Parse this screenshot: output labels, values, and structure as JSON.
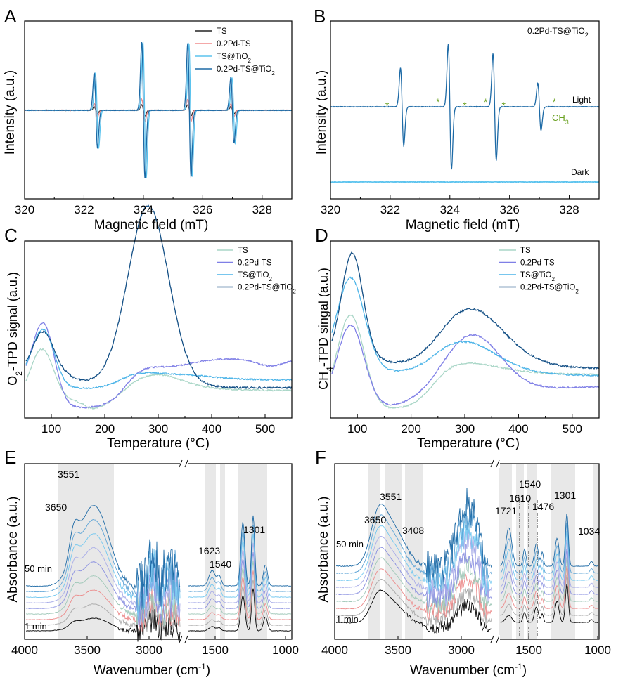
{
  "chart_data": [
    {
      "panel": "A",
      "type": "line",
      "xlabel": "Magnetic field (mT)",
      "ylabel": "Intensity (a.u.)",
      "xlim": [
        320,
        329
      ],
      "xticks": [
        "320",
        "322",
        "324",
        "326",
        "328"
      ],
      "peak_centers": [
        322.4,
        324.0,
        325.55,
        327.0
      ],
      "series": [
        {
          "name": "TS",
          "color": "#222222",
          "amplitudes": [
            0.05,
            0.08,
            0.08,
            0.05
          ]
        },
        {
          "name": "0.2Pd-TS",
          "color": "#f08c8c",
          "amplitudes": [
            0.1,
            0.16,
            0.16,
            0.09
          ]
        },
        {
          "name": "TS@TiO₂",
          "color": "#5bc3ee",
          "amplitudes": [
            0.55,
            1.0,
            0.98,
            0.48
          ]
        },
        {
          "name": "0.2Pd-TS@TiO₂",
          "color": "#1d6aa6",
          "amplitudes": [
            0.55,
            1.0,
            0.98,
            0.48
          ]
        }
      ]
    },
    {
      "panel": "B",
      "type": "line",
      "title": "0.2Pd-TS@TiO₂",
      "xlabel": "Magnetic field (mT)",
      "ylabel": "Intensity (a.u.)",
      "xlim": [
        320,
        329
      ],
      "xticks": [
        "320",
        "322",
        "324",
        "326",
        "328"
      ],
      "annotations": [
        "Light",
        "Dark",
        "CH₃"
      ],
      "star_positions": [
        321.9,
        323.6,
        324.5,
        325.2,
        325.8,
        327.5
      ],
      "series": [
        {
          "name": "Light",
          "color": "#1d6aa6",
          "peak_centers": [
            322.4,
            324.0,
            325.5,
            327.0
          ],
          "amplitudes": [
            0.62,
            1.0,
            0.85,
            0.38
          ]
        },
        {
          "name": "Dark",
          "color": "#5bc3ee",
          "flat": true
        }
      ]
    },
    {
      "panel": "C",
      "type": "line",
      "xlabel": "Temperature (°C)",
      "ylabel": "O₂-TPD signal (a.u.)",
      "xlim": [
        50,
        550
      ],
      "xticks": [
        "100",
        "200",
        "300",
        "400",
        "500"
      ],
      "series": [
        {
          "name": "TS",
          "color": "#a9d6c7"
        },
        {
          "name": "0.2Pd-TS",
          "color": "#7f7fe6"
        },
        {
          "name": "TS@TiO₂",
          "color": "#4cb4e8"
        },
        {
          "name": "0.2Pd-TS@TiO₂",
          "color": "#134f85"
        }
      ]
    },
    {
      "panel": "D",
      "type": "line",
      "xlabel": "Temperature (°C)",
      "ylabel": "CH₄-TPD singal (a.u.)",
      "xlim": [
        50,
        550
      ],
      "xticks": [
        "100",
        "200",
        "300",
        "400",
        "500"
      ],
      "series": [
        {
          "name": "TS",
          "color": "#a9d6c7"
        },
        {
          "name": "0.2Pd-TS",
          "color": "#7f7fe6"
        },
        {
          "name": "TS@TiO₂",
          "color": "#4cb4e8"
        },
        {
          "name": "0.2Pd-TS@TiO₂",
          "color": "#134f85"
        }
      ]
    },
    {
      "panel": "E",
      "type": "line",
      "xlabel": "Wavenumber (cm⁻¹)",
      "ylabel": "Absorbance (a.u.)",
      "xticks": [
        "4000",
        "3500",
        "3000",
        "1500",
        "1000"
      ],
      "time_labels": [
        "50 min",
        "1 min"
      ],
      "peak_labels": [
        "3551",
        "3650",
        "1623",
        "1540",
        "1301"
      ]
    },
    {
      "panel": "F",
      "type": "line",
      "xlabel": "Wavenumber (cm⁻¹)",
      "ylabel": "Absorbance (a.u.)",
      "xticks": [
        "4000",
        "3500",
        "3000",
        "1500",
        "1000"
      ],
      "time_labels": [
        "50 min",
        "1 min"
      ],
      "peak_labels": [
        "3551",
        "3650",
        "3408",
        "1540",
        "1610",
        "1721",
        "1476",
        "1301",
        "1034"
      ]
    }
  ]
}
